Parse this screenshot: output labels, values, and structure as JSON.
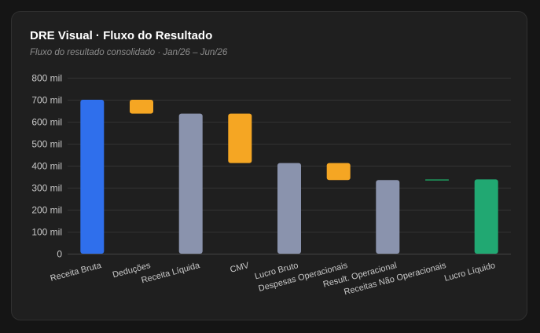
{
  "header": {
    "title": "DRE Visual · Fluxo do Resultado",
    "subtitle": "Fluxo do resultado consolidado · Jan/26 – Jun/26"
  },
  "colors": {
    "background": "#151515",
    "card": "#1f1f1f",
    "grid": "#333333",
    "total": "#2f6fec",
    "decrease": "#f5a623",
    "subtotal": "#8a93ad",
    "increase": "#1f9f60",
    "net": "#21a872"
  },
  "chart_data": {
    "type": "bar",
    "variant": "waterfall",
    "title": "DRE Visual · Fluxo do Resultado",
    "subtitle": "Fluxo do resultado consolidado · Jan/26 – Jun/26",
    "xlabel": "",
    "ylabel": "",
    "ylim": [
      0,
      800000
    ],
    "yticks": [
      0,
      100000,
      200000,
      300000,
      400000,
      500000,
      600000,
      700000,
      800000
    ],
    "ytick_labels": [
      "0",
      "100 mil",
      "200 mil",
      "300 mil",
      "400 mil",
      "500 mil",
      "600 mil",
      "700 mil",
      "800 mil"
    ],
    "grid": true,
    "legend": "none",
    "categories": [
      "Receita Bruta",
      "Deduções",
      "Receita Líquida",
      "CMV",
      "Lucro Bruto",
      "Despesas Operacionais",
      "Result. Operacional",
      "Receitas Não Operacionais",
      "Lucro Líquido"
    ],
    "steps": [
      {
        "label": "Receita Bruta",
        "kind": "total",
        "start": 0,
        "end": 700000,
        "value": 700000
      },
      {
        "label": "Deduções",
        "kind": "decrease",
        "start": 700000,
        "end": 637000,
        "value": -63000
      },
      {
        "label": "Receita Líquida",
        "kind": "subtotal",
        "start": 0,
        "end": 637000,
        "value": 637000
      },
      {
        "label": "CMV",
        "kind": "decrease",
        "start": 637000,
        "end": 412000,
        "value": -225000
      },
      {
        "label": "Lucro Bruto",
        "kind": "subtotal",
        "start": 0,
        "end": 412000,
        "value": 412000
      },
      {
        "label": "Despesas Operacionais",
        "kind": "decrease",
        "start": 412000,
        "end": 335000,
        "value": -77000
      },
      {
        "label": "Result. Operacional",
        "kind": "subtotal",
        "start": 0,
        "end": 335000,
        "value": 335000
      },
      {
        "label": "Receitas Não Operacionais",
        "kind": "increase",
        "start": 335000,
        "end": 338000,
        "value": 3000
      },
      {
        "label": "Lucro Líquido",
        "kind": "net",
        "start": 0,
        "end": 338000,
        "value": 338000
      }
    ]
  }
}
